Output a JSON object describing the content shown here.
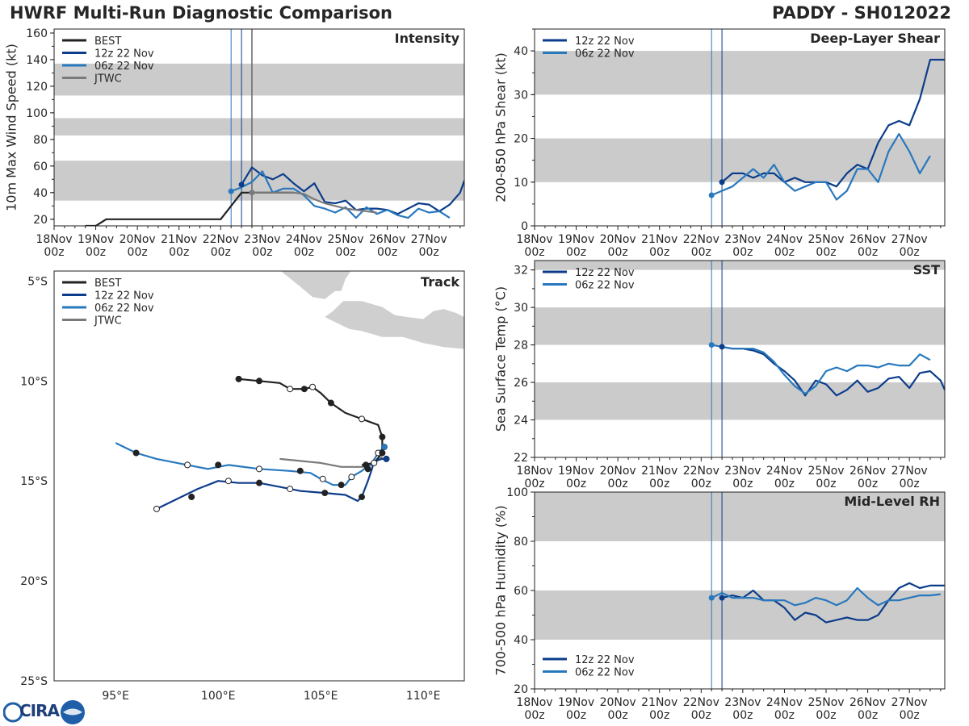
{
  "header": {
    "left_title": "HWRF Multi-Run Diagnostic Comparison",
    "right_title": "PADDY - SH012022"
  },
  "logo": {
    "name": "CIRA",
    "text": "CIRA"
  },
  "colors": {
    "best": "#222222",
    "run12z": "#0c3d8a",
    "run06z": "#2878be",
    "jtwc": "#7a7a7a",
    "band": "#cbcbcb",
    "land": "#cfcfcf",
    "init_line12": "#0c3d8a",
    "init_line06": "#2878be",
    "init_lineJ": "#666666"
  },
  "time_axis": {
    "tick_labels": [
      "18Nov\n00z",
      "19Nov\n00z",
      "20Nov\n00z",
      "21Nov\n00z",
      "22Nov\n00z",
      "23Nov\n00z",
      "24Nov\n00z",
      "25Nov\n00z",
      "26Nov\n00z",
      "27Nov\n00z"
    ],
    "tick_days": [
      0,
      1,
      2,
      3,
      4,
      5,
      6,
      7,
      8,
      9
    ],
    "init_times": {
      "run06z": 4.25,
      "run12z": 4.5,
      "jtwc": 4.75
    }
  },
  "chart_data": [
    {
      "id": "intensity",
      "type": "line",
      "title": "Intensity",
      "ylabel": "10m Max Wind Speed (kt)",
      "xlim": [
        0,
        9.85
      ],
      "ylim": [
        15,
        163
      ],
      "yticks": [
        20,
        40,
        60,
        80,
        100,
        120,
        140,
        160
      ],
      "bands": [
        [
          34,
          64
        ],
        [
          83,
          96
        ],
        [
          113,
          137
        ]
      ],
      "legend": [
        "BEST",
        "12z 22 Nov",
        "06z 22 Nov",
        "JTWC"
      ],
      "series": [
        {
          "name": "BEST",
          "key": "best",
          "x": [
            0.75,
            1.0,
            1.25,
            1.5,
            1.75,
            2.0,
            2.25,
            2.5,
            2.75,
            3.0,
            3.25,
            3.5,
            3.75,
            4.0,
            4.25,
            4.5,
            4.75,
            5.0,
            5.25,
            5.5,
            5.75
          ],
          "y": [
            15,
            15,
            20,
            20,
            20,
            20,
            20,
            20,
            20,
            20,
            20,
            20,
            20,
            20,
            30,
            40,
            40,
            40,
            40,
            40,
            40
          ]
        },
        {
          "name": "12z 22 Nov",
          "key": "run12z",
          "x": [
            4.5,
            4.75,
            5.0,
            5.25,
            5.5,
            5.75,
            6.0,
            6.25,
            6.5,
            6.75,
            7.0,
            7.25,
            7.5,
            7.75,
            8.0,
            8.25,
            8.5,
            8.75,
            9.0,
            9.25,
            9.5,
            9.75,
            9.85
          ],
          "y": [
            46,
            59,
            53,
            50,
            54,
            47,
            41,
            47,
            33,
            32,
            34,
            27,
            28,
            28,
            27,
            24,
            28,
            32,
            31,
            26,
            31,
            40,
            49
          ]
        },
        {
          "name": "06z 22 Nov",
          "key": "run06z",
          "x": [
            4.25,
            4.5,
            4.75,
            5.0,
            5.25,
            5.5,
            5.75,
            6.0,
            6.25,
            6.5,
            6.75,
            7.0,
            7.25,
            7.5,
            7.75,
            8.0,
            8.25,
            8.5,
            8.75,
            9.0,
            9.25,
            9.5
          ],
          "y": [
            41,
            44,
            48,
            56,
            40,
            43,
            43,
            38,
            30,
            28,
            25,
            29,
            21,
            29,
            24,
            27,
            23,
            21,
            28,
            25,
            26,
            21
          ]
        },
        {
          "name": "JTWC",
          "key": "jtwc",
          "x": [
            4.75,
            5.0,
            5.25,
            5.5,
            5.75,
            6.0,
            6.25,
            6.5,
            6.75,
            7.0,
            7.25,
            7.5,
            7.75
          ],
          "y": [
            40,
            40,
            40,
            40,
            40,
            39,
            35,
            32,
            30,
            28,
            27,
            26,
            25
          ]
        }
      ],
      "markers": [
        {
          "key": "run06z",
          "x": 4.25,
          "y": 41
        },
        {
          "key": "run12z",
          "x": 4.5,
          "y": 46
        },
        {
          "key": "jtwc",
          "x": 4.75,
          "y": 40
        }
      ]
    },
    {
      "id": "shear",
      "type": "line",
      "title": "Deep-Layer Shear",
      "ylabel": "200-850 hPa Shear (kt)",
      "xlim": [
        0,
        9.85
      ],
      "ylim": [
        0,
        45
      ],
      "yticks": [
        0,
        10,
        20,
        30,
        40
      ],
      "bands": [
        [
          10,
          20
        ],
        [
          30,
          40
        ]
      ],
      "legend": [
        "12z 22 Nov",
        "06z 22 Nov"
      ],
      "series": [
        {
          "name": "12z 22 Nov",
          "key": "run12z",
          "x": [
            4.5,
            4.75,
            5.0,
            5.25,
            5.5,
            5.75,
            6.0,
            6.25,
            6.5,
            6.75,
            7.0,
            7.25,
            7.5,
            7.75,
            8.0,
            8.25,
            8.5,
            8.75,
            9.0,
            9.25,
            9.5,
            9.75,
            9.85
          ],
          "y": [
            10,
            12,
            12,
            11,
            12,
            12,
            10,
            11,
            10,
            10,
            10,
            9,
            12,
            14,
            13,
            19,
            23,
            24,
            23,
            29,
            38,
            38,
            38
          ]
        },
        {
          "name": "06z 22 Nov",
          "key": "run06z",
          "x": [
            4.25,
            4.5,
            4.75,
            5.0,
            5.25,
            5.5,
            5.75,
            6.0,
            6.25,
            6.5,
            6.75,
            7.0,
            7.25,
            7.5,
            7.75,
            8.0,
            8.25,
            8.5,
            8.75,
            9.0,
            9.25,
            9.5
          ],
          "y": [
            7,
            8,
            9,
            11,
            13,
            11,
            14,
            10,
            8,
            9,
            10,
            10,
            6,
            8,
            13,
            13,
            10,
            17,
            21,
            17,
            12,
            16
          ]
        }
      ],
      "markers": [
        {
          "key": "run06z",
          "x": 4.25,
          "y": 7
        },
        {
          "key": "run12z",
          "x": 4.5,
          "y": 10
        }
      ]
    },
    {
      "id": "sst",
      "type": "line",
      "title": "SST",
      "ylabel": "Sea Surface Temp (°C)",
      "xlim": [
        0,
        9.85
      ],
      "ylim": [
        22,
        32.5
      ],
      "yticks": [
        22,
        24,
        26,
        28,
        30,
        32
      ],
      "bands": [
        [
          24,
          26
        ],
        [
          28,
          30
        ],
        [
          32,
          32.5
        ]
      ],
      "legend": [
        "12z 22 Nov",
        "06z 22 Nov"
      ],
      "series": [
        {
          "name": "12z 22 Nov",
          "key": "run12z",
          "x": [
            4.5,
            4.75,
            5.0,
            5.25,
            5.5,
            5.75,
            6.0,
            6.25,
            6.5,
            6.75,
            7.0,
            7.25,
            7.5,
            7.75,
            8.0,
            8.25,
            8.5,
            8.75,
            9.0,
            9.25,
            9.5,
            9.75,
            9.85
          ],
          "y": [
            27.9,
            27.8,
            27.8,
            27.7,
            27.5,
            27.0,
            26.6,
            26.1,
            25.3,
            26.1,
            25.9,
            25.3,
            25.6,
            26.1,
            25.5,
            25.7,
            26.2,
            26.3,
            25.7,
            26.5,
            26.6,
            26.1,
            25.6
          ]
        },
        {
          "name": "06z 22 Nov",
          "key": "run06z",
          "x": [
            4.25,
            4.5,
            4.75,
            5.0,
            5.25,
            5.5,
            5.75,
            6.0,
            6.25,
            6.5,
            6.75,
            7.0,
            7.25,
            7.5,
            7.75,
            8.0,
            8.25,
            8.5,
            8.75,
            9.0,
            9.25,
            9.5
          ],
          "y": [
            28.0,
            27.9,
            27.8,
            27.8,
            27.8,
            27.6,
            27.1,
            26.4,
            25.8,
            25.4,
            25.8,
            26.6,
            26.8,
            26.6,
            26.9,
            26.9,
            26.8,
            27.0,
            26.9,
            26.9,
            27.5,
            27.2
          ]
        }
      ],
      "markers": [
        {
          "key": "run06z",
          "x": 4.25,
          "y": 28.0
        },
        {
          "key": "run12z",
          "x": 4.5,
          "y": 27.9
        }
      ]
    },
    {
      "id": "rh",
      "type": "line",
      "title": "Mid-Level RH",
      "ylabel": "700-500 hPa Humidity (%)",
      "xlim": [
        0,
        9.85
      ],
      "ylim": [
        20,
        100
      ],
      "yticks": [
        20,
        40,
        60,
        80,
        100
      ],
      "bands": [
        [
          40,
          60
        ],
        [
          80,
          100
        ]
      ],
      "legend": [
        "12z 22 Nov",
        "06z 22 Nov"
      ],
      "legend_position": "bottom-left",
      "series": [
        {
          "name": "12z 22 Nov",
          "key": "run12z",
          "x": [
            4.5,
            4.75,
            5.0,
            5.25,
            5.5,
            5.75,
            6.0,
            6.25,
            6.5,
            6.75,
            7.0,
            7.25,
            7.5,
            7.75,
            8.0,
            8.25,
            8.5,
            8.75,
            9.0,
            9.25,
            9.5,
            9.75,
            9.85
          ],
          "y": [
            57,
            58,
            57,
            60,
            56,
            56,
            53,
            48,
            51,
            50,
            47,
            48,
            49,
            48,
            48,
            50,
            56,
            61,
            63,
            61,
            62,
            62,
            62
          ]
        },
        {
          "name": "06z 22 Nov",
          "key": "run06z",
          "x": [
            4.25,
            4.5,
            4.75,
            5.0,
            5.25,
            5.5,
            5.75,
            6.0,
            6.25,
            6.5,
            6.75,
            7.0,
            7.25,
            7.5,
            7.75,
            8.0,
            8.25,
            8.5,
            8.75,
            9.0,
            9.25,
            9.5,
            9.75
          ],
          "y": [
            57,
            59,
            57,
            57,
            57,
            56,
            56,
            56,
            54,
            55,
            57,
            56,
            54,
            56,
            61,
            57,
            54,
            56,
            56,
            57,
            58,
            58,
            58.5
          ]
        }
      ],
      "markers": [
        {
          "key": "run06z",
          "x": 4.25,
          "y": 57
        },
        {
          "key": "run12z",
          "x": 4.5,
          "y": 57
        }
      ]
    },
    {
      "id": "track",
      "type": "line",
      "title": "Track",
      "xlim": [
        92.0,
        112.0
      ],
      "ylim": [
        -25.0,
        -4.5
      ],
      "lon_ticks": [
        95,
        100,
        105,
        110
      ],
      "lon_labels": [
        "95°E",
        "100°E",
        "105°E",
        "110°E"
      ],
      "lat_ticks": [
        -5,
        -10,
        -15,
        -20,
        -25
      ],
      "lat_labels": [
        "5°S",
        "10°S",
        "15°S",
        "20°S",
        "25°S"
      ],
      "legend": [
        "BEST",
        "12z 22 Nov",
        "06z 22 Nov",
        "JTWC"
      ],
      "series": [
        {
          "name": "BEST",
          "key": "best",
          "lon": [
            101.0,
            102.0,
            103.0,
            103.5,
            104.2,
            104.6,
            105.0,
            105.5,
            106.2,
            107.0,
            107.8,
            108.0,
            108.0,
            107.6,
            107.0
          ],
          "lat": [
            -9.9,
            -10.0,
            -10.1,
            -10.4,
            -10.4,
            -10.3,
            -10.6,
            -11.1,
            -11.6,
            -11.9,
            -12.2,
            -12.8,
            -13.6,
            -14.1,
            -14.2
          ],
          "markers": [
            [
              101.0,
              -9.9,
              1
            ],
            [
              102.0,
              -10.0,
              1
            ],
            [
              103.5,
              -10.4,
              0
            ],
            [
              104.2,
              -10.4,
              1
            ],
            [
              104.6,
              -10.3,
              0
            ],
            [
              105.5,
              -11.1,
              1
            ],
            [
              107.0,
              -11.9,
              0
            ],
            [
              108.0,
              -12.8,
              1
            ],
            [
              108.0,
              -13.6,
              1
            ],
            [
              107.6,
              -14.1,
              0
            ]
          ]
        },
        {
          "name": "12z 22 Nov",
          "key": "run12z",
          "lon": [
            108.2,
            108.0,
            107.6,
            107.5,
            107.3,
            107.0,
            106.8,
            106.2,
            105.2,
            104.0,
            103.0,
            102.0,
            101.0,
            100.0,
            99.0,
            98.0,
            97.0
          ],
          "lat": [
            -13.9,
            -13.9,
            -14.0,
            -14.4,
            -15.0,
            -15.8,
            -16.0,
            -15.7,
            -15.6,
            -15.5,
            -15.3,
            -15.1,
            -15.1,
            -15.0,
            -15.4,
            -15.9,
            -16.4
          ],
          "markers": [
            [
              108.2,
              -13.9,
              1
            ],
            [
              107.3,
              -14.4,
              1
            ],
            [
              107.0,
              -15.8,
              1
            ],
            [
              105.2,
              -15.6,
              1
            ],
            [
              103.5,
              -15.4,
              0
            ],
            [
              102.0,
              -15.1,
              1
            ],
            [
              100.5,
              -15.0,
              0
            ],
            [
              98.7,
              -15.8,
              1
            ],
            [
              97.0,
              -16.4,
              0
            ]
          ]
        },
        {
          "name": "06z 22 Nov",
          "key": "run06z",
          "lon": [
            108.1,
            107.8,
            107.5,
            107.0,
            106.5,
            106.2,
            105.6,
            105.0,
            104.5,
            103.5,
            102.0,
            100.5,
            99.5,
            98.5,
            97.0,
            96.0,
            95.0
          ],
          "lat": [
            -13.3,
            -13.6,
            -14.1,
            -14.5,
            -14.8,
            -15.2,
            -15.2,
            -14.9,
            -14.6,
            -14.5,
            -14.4,
            -14.2,
            -14.4,
            -14.2,
            -13.9,
            -13.6,
            -13.1
          ],
          "markers": [
            [
              108.1,
              -13.3,
              1
            ],
            [
              107.8,
              -13.6,
              0
            ],
            [
              107.2,
              -14.2,
              1
            ],
            [
              106.5,
              -14.8,
              0
            ],
            [
              106.0,
              -15.2,
              1
            ],
            [
              105.1,
              -14.9,
              0
            ],
            [
              104.0,
              -14.5,
              1
            ],
            [
              102.0,
              -14.4,
              0
            ],
            [
              100.0,
              -14.2,
              1
            ],
            [
              98.5,
              -14.2,
              0
            ],
            [
              96.0,
              -13.6,
              1
            ]
          ]
        },
        {
          "name": "JTWC",
          "key": "jtwc",
          "lon": [
            103.0,
            104.0,
            105.0,
            106.0,
            107.0,
            107.5,
            108.0
          ],
          "lat": [
            -13.9,
            -14.0,
            -14.1,
            -14.3,
            -14.3,
            -14.2,
            -13.8
          ],
          "markers": []
        }
      ]
    }
  ]
}
